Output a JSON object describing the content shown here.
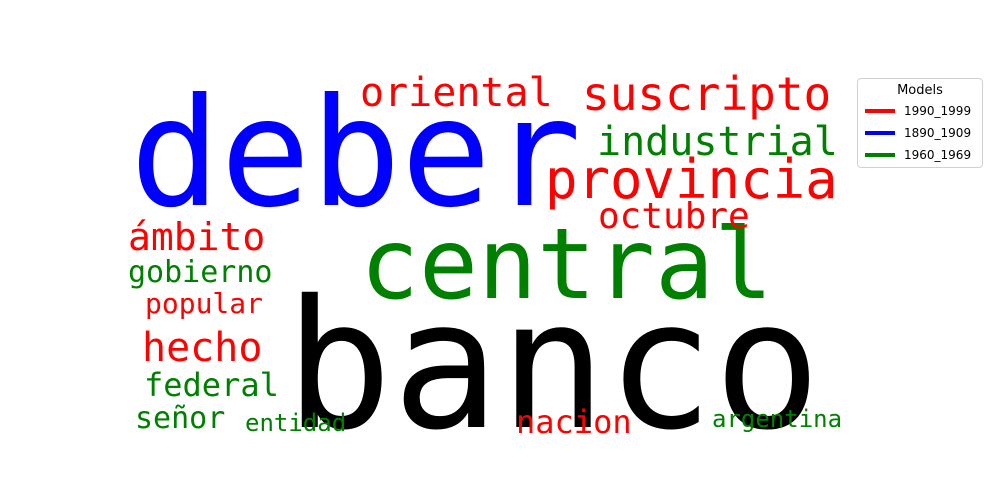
{
  "chart_data": {
    "type": "wordcloud",
    "title": "",
    "legend": {
      "title": "Models",
      "placement": "top-right",
      "entries": [
        {
          "label": "1990_1999",
          "color": "#ff0000"
        },
        {
          "label": "1890_1909",
          "color": "#0000ff"
        },
        {
          "label": "1960_1969",
          "color": "#008000"
        }
      ]
    },
    "words": [
      {
        "text": "banco",
        "color": "#000000"
      },
      {
        "text": "deber",
        "color": "#0000ff"
      },
      {
        "text": "central",
        "color": "#008000"
      },
      {
        "text": "provincia",
        "color": "#ff0000"
      },
      {
        "text": "suscripto",
        "color": "#ff0000"
      },
      {
        "text": "industrial",
        "color": "#008000"
      },
      {
        "text": "oriental",
        "color": "#ff0000"
      },
      {
        "text": "octubre",
        "color": "#ff0000"
      },
      {
        "text": "ámbito",
        "color": "#ff0000"
      },
      {
        "text": "hecho",
        "color": "#ff0000"
      },
      {
        "text": "gobierno",
        "color": "#008000"
      },
      {
        "text": "popular",
        "color": "#ff0000"
      },
      {
        "text": "federal",
        "color": "#008000"
      },
      {
        "text": "nacion",
        "color": "#ff0000"
      },
      {
        "text": "señor",
        "color": "#008000"
      },
      {
        "text": "entidad",
        "color": "#008000"
      },
      {
        "text": "argentina",
        "color": "#008000"
      }
    ]
  }
}
